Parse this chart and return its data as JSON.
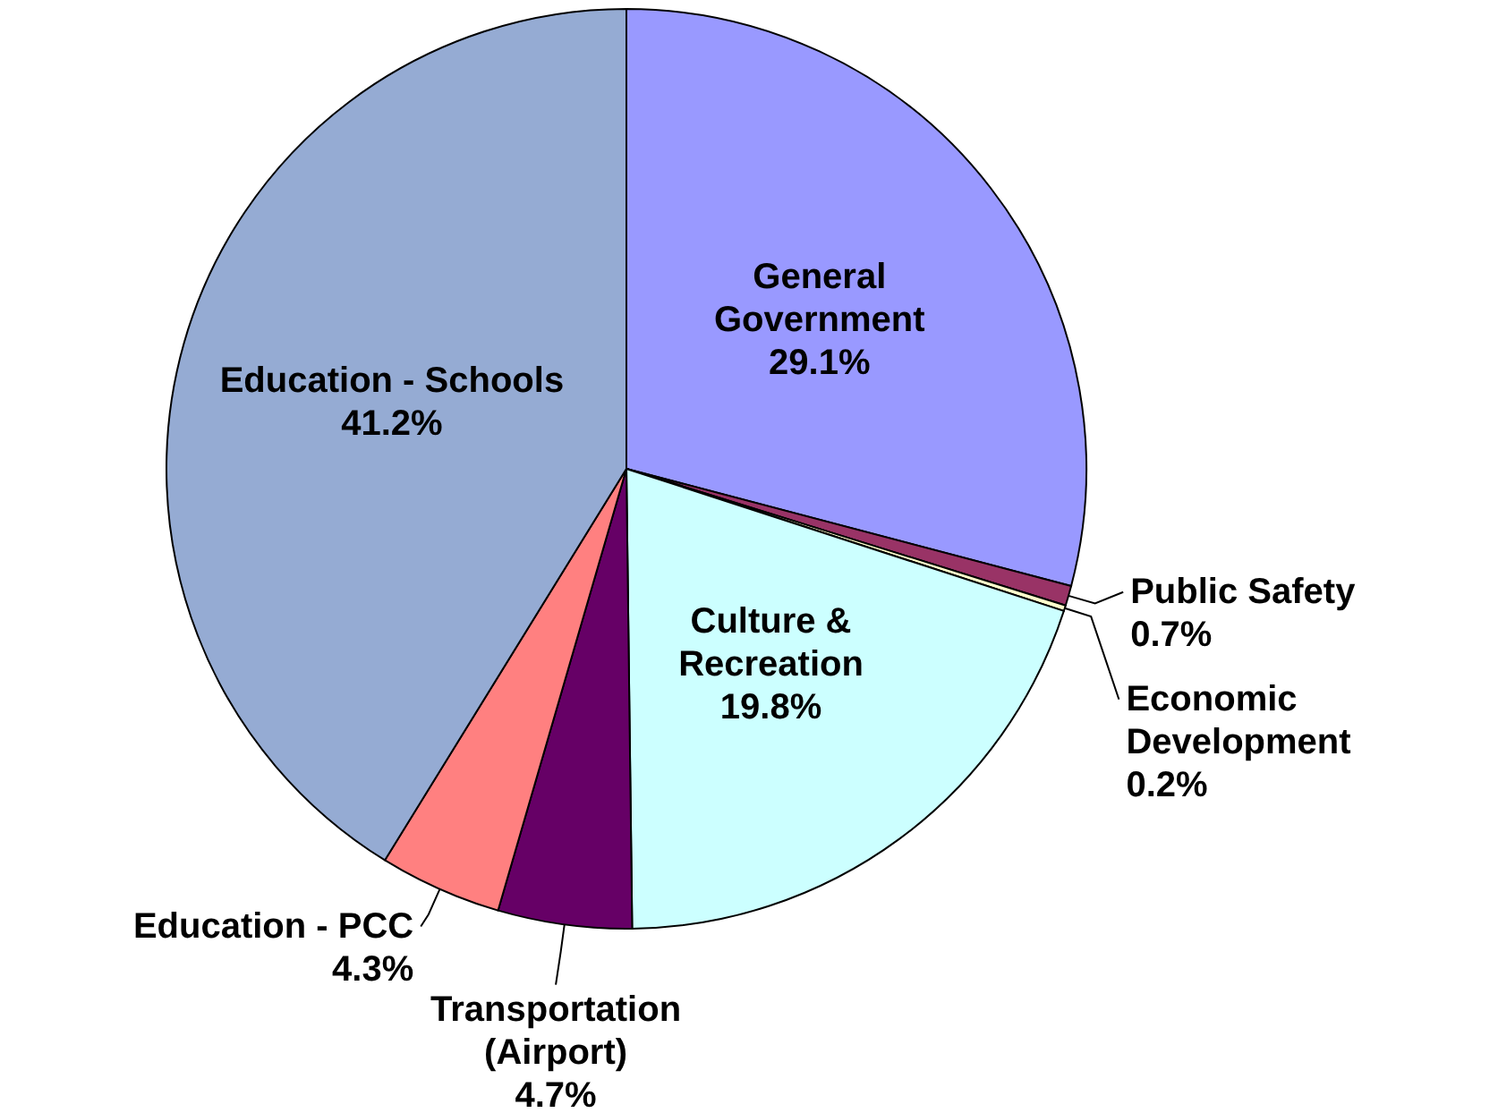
{
  "chart_data": {
    "type": "pie",
    "categories": [
      "General Government",
      "Public Safety",
      "Economic Development",
      "Culture & Recreation",
      "Transportation (Airport)",
      "Education - PCC",
      "Education - Schools"
    ],
    "values": [
      29.1,
      0.7,
      0.2,
      19.8,
      4.7,
      4.3,
      41.2
    ],
    "value_labels": [
      "29.1%",
      "0.7%",
      "0.2%",
      "19.8%",
      "4.7%",
      "4.3%",
      "41.2%"
    ],
    "colors": [
      "#9999ff",
      "#993366",
      "#ffffcc",
      "#ccffff",
      "#660066",
      "#ff8080",
      "#95abd3"
    ]
  }
}
